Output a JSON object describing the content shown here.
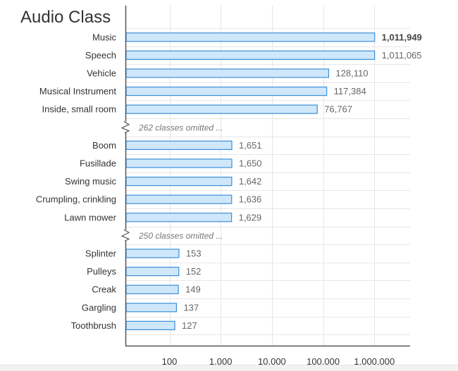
{
  "chart_data": {
    "type": "bar",
    "orientation": "horizontal",
    "title": "Audio Class",
    "x_scale": "log",
    "xlim": [
      10,
      5000000
    ],
    "x_ticks": [
      {
        "value": 100,
        "label": "100"
      },
      {
        "value": 1000,
        "label": "1.000"
      },
      {
        "value": 10000,
        "label": "10.000"
      },
      {
        "value": 100000,
        "label": "100.000"
      },
      {
        "value": 1000000,
        "label": "1.000.000"
      }
    ],
    "grid": true,
    "rows": [
      {
        "kind": "bar",
        "category": "Music",
        "value": 1011949,
        "label": "1,011,949",
        "emphasis": true
      },
      {
        "kind": "bar",
        "category": "Speech",
        "value": 1011065,
        "label": "1,011,065"
      },
      {
        "kind": "bar",
        "category": "Vehicle",
        "value": 128110,
        "label": "128,110"
      },
      {
        "kind": "bar",
        "category": "Musical Instrument",
        "value": 117384,
        "label": "117,384"
      },
      {
        "kind": "bar",
        "category": "Inside, small room",
        "value": 76767,
        "label": "76,767"
      },
      {
        "kind": "gap",
        "text": "262 classes omitted ..."
      },
      {
        "kind": "bar",
        "category": "Boom",
        "value": 1651,
        "label": "1,651"
      },
      {
        "kind": "bar",
        "category": "Fusillade",
        "value": 1650,
        "label": "1,650"
      },
      {
        "kind": "bar",
        "category": "Swing music",
        "value": 1642,
        "label": "1,642"
      },
      {
        "kind": "bar",
        "category": "Crumpling, crinkling",
        "value": 1636,
        "label": "1,636"
      },
      {
        "kind": "bar",
        "category": "Lawn mower",
        "value": 1629,
        "label": "1,629"
      },
      {
        "kind": "gap",
        "text": "250 classes omitted ..."
      },
      {
        "kind": "bar",
        "category": "Splinter",
        "value": 153,
        "label": "153"
      },
      {
        "kind": "bar",
        "category": "Pulleys",
        "value": 152,
        "label": "152"
      },
      {
        "kind": "bar",
        "category": "Creak",
        "value": 149,
        "label": "149"
      },
      {
        "kind": "bar",
        "category": "Gargling",
        "value": 137,
        "label": "137"
      },
      {
        "kind": "bar",
        "category": "Toothbrush",
        "value": 127,
        "label": "127"
      }
    ],
    "colors": {
      "bar_fill": "#cfe7fa",
      "bar_stroke": "#3b8fd9",
      "grid": "#e6e6e6",
      "axis": "#555555",
      "text": "#333333",
      "value_text": "#666666",
      "gap_text": "#777777"
    }
  }
}
